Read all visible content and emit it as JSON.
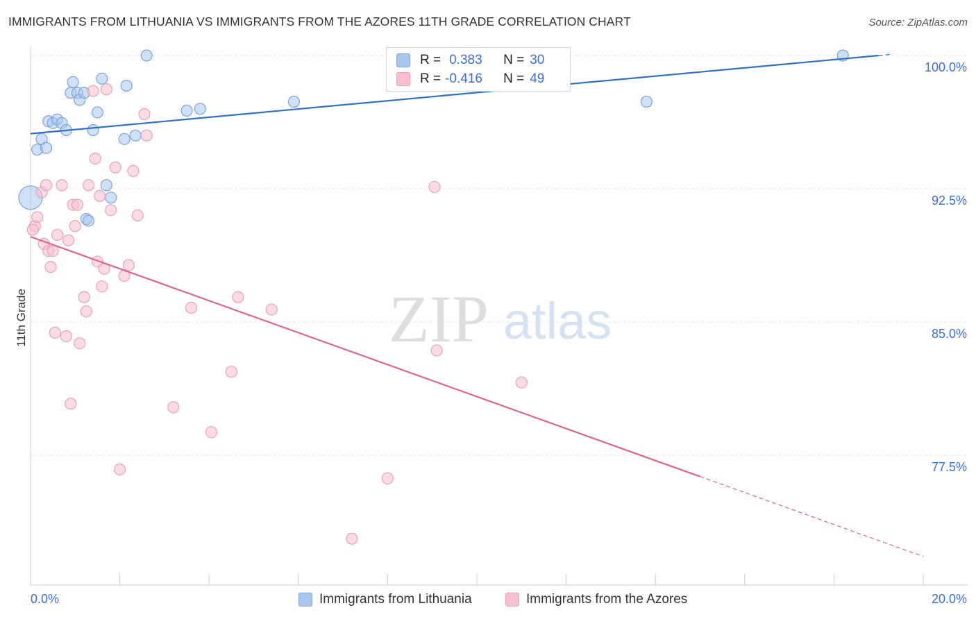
{
  "title": "IMMIGRANTS FROM LITHUANIA VS IMMIGRANTS FROM THE AZORES 11TH GRADE CORRELATION CHART",
  "source": "Source: ZipAtlas.com",
  "watermark": {
    "zip": "ZIP",
    "atlas": "atlas"
  },
  "legend": {
    "r_label": "R =",
    "n_label": "N =",
    "lithuania": {
      "r": "0.383",
      "n": "30"
    },
    "azores": {
      "r": "-0.416",
      "n": "49"
    }
  },
  "colors": {
    "lithuania_fill": "#aac6ee",
    "lithuania_stroke": "#7aa3e0",
    "lithuania_line": "#2f6fce",
    "azores_fill": "#f7bfd0",
    "azores_stroke": "#eaa0b8",
    "azores_line": "#e0608e",
    "tick_label": "#3a6fd8",
    "grid": "#e4e4e4"
  },
  "chart_data": {
    "type": "scatter",
    "title": "IMMIGRANTS FROM LITHUANIA VS IMMIGRANTS FROM THE AZORES 11TH GRADE CORRELATION CHART",
    "xlabel": "",
    "ylabel": "11th Grade",
    "xlim": [
      0,
      20
    ],
    "ylim": [
      70.0,
      101.0
    ],
    "x_ticks": [
      "0.0%",
      "20.0%"
    ],
    "y_ticks": [
      {
        "value": 100.0,
        "label": "100.0%"
      },
      {
        "value": 92.5,
        "label": "92.5%"
      },
      {
        "value": 85.0,
        "label": "85.0%"
      },
      {
        "value": 77.5,
        "label": "77.5%"
      }
    ],
    "grid": true,
    "legend_position": "bottom",
    "series": [
      {
        "name": "Immigrants from Lithuania",
        "trend": {
          "x0": 0,
          "y0": 95.6,
          "x1": 19.0,
          "y1": 100.0,
          "dashed_to": 19.3
        },
        "points": [
          [
            0.0,
            92.0
          ],
          [
            0.15,
            94.7
          ],
          [
            0.25,
            95.3
          ],
          [
            0.35,
            94.8
          ],
          [
            0.4,
            96.3
          ],
          [
            0.5,
            96.2
          ],
          [
            0.6,
            96.4
          ],
          [
            0.7,
            96.2
          ],
          [
            0.8,
            95.8
          ],
          [
            0.9,
            97.9
          ],
          [
            0.95,
            98.5
          ],
          [
            1.05,
            97.9
          ],
          [
            1.1,
            97.5
          ],
          [
            1.2,
            97.9
          ],
          [
            1.25,
            90.8
          ],
          [
            1.3,
            90.7
          ],
          [
            1.4,
            95.8
          ],
          [
            1.5,
            96.8
          ],
          [
            1.6,
            98.7
          ],
          [
            1.7,
            92.7
          ],
          [
            1.8,
            92.0
          ],
          [
            2.1,
            95.3
          ],
          [
            2.15,
            98.3
          ],
          [
            2.35,
            95.5
          ],
          [
            2.6,
            100.0
          ],
          [
            3.5,
            96.9
          ],
          [
            3.8,
            97.0
          ],
          [
            5.9,
            97.4
          ],
          [
            13.8,
            97.4
          ],
          [
            18.2,
            100.0
          ]
        ]
      },
      {
        "name": "Immigrants from the Azores",
        "trend": {
          "x0": 0,
          "y0": 89.8,
          "x1": 15.0,
          "y1": 76.3,
          "dashed_to": 20.0
        },
        "points": [
          [
            0.1,
            90.4
          ],
          [
            0.15,
            90.9
          ],
          [
            0.25,
            92.3
          ],
          [
            0.3,
            89.4
          ],
          [
            0.35,
            92.7
          ],
          [
            0.4,
            89.0
          ],
          [
            0.45,
            88.1
          ],
          [
            0.5,
            89.0
          ],
          [
            0.55,
            84.4
          ],
          [
            0.6,
            89.9
          ],
          [
            0.7,
            92.7
          ],
          [
            0.8,
            84.2
          ],
          [
            0.85,
            89.6
          ],
          [
            0.9,
            80.4
          ],
          [
            0.95,
            91.6
          ],
          [
            1.0,
            90.4
          ],
          [
            1.05,
            91.6
          ],
          [
            1.1,
            83.8
          ],
          [
            1.2,
            86.4
          ],
          [
            1.25,
            85.6
          ],
          [
            1.3,
            92.7
          ],
          [
            1.4,
            98.0
          ],
          [
            1.45,
            94.2
          ],
          [
            1.5,
            88.4
          ],
          [
            1.55,
            92.1
          ],
          [
            1.6,
            87.0
          ],
          [
            1.65,
            88.0
          ],
          [
            1.7,
            98.1
          ],
          [
            1.8,
            91.3
          ],
          [
            1.9,
            93.7
          ],
          [
            2.0,
            76.7
          ],
          [
            2.1,
            87.6
          ],
          [
            2.2,
            88.2
          ],
          [
            2.3,
            93.5
          ],
          [
            2.4,
            91.0
          ],
          [
            2.55,
            96.7
          ],
          [
            2.6,
            95.5
          ],
          [
            3.2,
            80.2
          ],
          [
            3.6,
            85.8
          ],
          [
            4.05,
            78.8
          ],
          [
            4.5,
            82.2
          ],
          [
            4.65,
            86.4
          ],
          [
            5.4,
            85.7
          ],
          [
            7.2,
            72.8
          ],
          [
            8.0,
            76.2
          ],
          [
            9.05,
            92.6
          ],
          [
            9.1,
            83.4
          ],
          [
            11.0,
            81.6
          ],
          [
            0.05,
            90.2
          ]
        ]
      }
    ]
  },
  "bottom_legend": {
    "lithuania": "Immigrants from Lithuania",
    "azores": "Immigrants from the Azores"
  },
  "axes": {
    "x_min_label": "0.0%",
    "x_max_label": "20.0%",
    "y_title": "11th Grade"
  }
}
